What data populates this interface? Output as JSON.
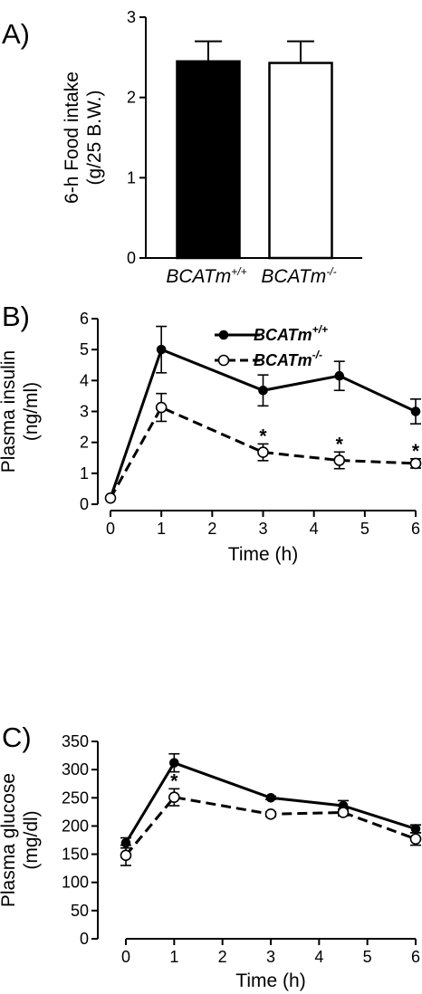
{
  "chart_data": [
    {
      "panel_label": "A)",
      "type": "bar",
      "categories": [
        {
          "base": "BCATm",
          "sup": "+/+"
        },
        {
          "base": "BCATm",
          "sup": "-/-"
        }
      ],
      "values": [
        2.45,
        2.43
      ],
      "errors": [
        0.25,
        0.27
      ],
      "bar_fill": [
        "#000000",
        "#ffffff"
      ],
      "ylabel_line1": "6-h Food intake",
      "ylabel_line2": "(g/25 B.W.)",
      "ylim": [
        0,
        3
      ],
      "yticks": [
        0,
        1,
        2,
        3
      ]
    },
    {
      "panel_label": "B)",
      "type": "line",
      "x": [
        0,
        1,
        3,
        4.5,
        6
      ],
      "series": [
        {
          "name": "BCATm",
          "name_sup": "+/+",
          "marker": "filled",
          "dash": false,
          "values": [
            0.2,
            5.0,
            3.68,
            4.15,
            3.0
          ],
          "errors": [
            0,
            0.75,
            0.5,
            0.47,
            0.4
          ]
        },
        {
          "name": "BCATm",
          "name_sup": "-/-",
          "marker": "open",
          "dash": true,
          "values": [
            0.2,
            3.13,
            1.68,
            1.42,
            1.32
          ],
          "errors": [
            0,
            0.45,
            0.27,
            0.27,
            0.15
          ]
        }
      ],
      "significance": [
        {
          "x": 3,
          "label": "*"
        },
        {
          "x": 4.5,
          "label": "*"
        },
        {
          "x": 6,
          "label": "*"
        }
      ],
      "xlabel": "Time (h)",
      "ylabel_line1": "Plasma insulin",
      "ylabel_line2": "(ng/ml)",
      "xlim": [
        0,
        6
      ],
      "ylim": [
        0,
        6
      ],
      "xticks": [
        0,
        1,
        2,
        3,
        4,
        5,
        6
      ],
      "yticks": [
        0,
        1,
        2,
        3,
        4,
        5,
        6
      ],
      "legend": "top-right"
    },
    {
      "panel_label": "C)",
      "type": "line",
      "x": [
        0,
        1,
        3,
        4.5,
        6
      ],
      "series": [
        {
          "marker": "filled",
          "dash": false,
          "values": [
            170,
            312,
            250,
            236,
            195
          ],
          "errors": [
            9,
            16,
            3,
            9,
            7
          ]
        },
        {
          "marker": "open",
          "dash": true,
          "values": [
            148,
            251,
            221,
            224,
            177
          ],
          "errors": [
            18,
            15,
            4,
            6,
            11
          ]
        }
      ],
      "significance": [
        {
          "x": 1,
          "label": "*"
        }
      ],
      "xlabel": "Time (h)",
      "ylabel_line1": "Plasma glucose",
      "ylabel_line2": "(mg/dl)",
      "xlim": [
        0,
        6
      ],
      "ylim": [
        0,
        350
      ],
      "xticks": [
        0,
        1,
        2,
        3,
        4,
        5,
        6
      ],
      "yticks": [
        0,
        50,
        100,
        150,
        200,
        250,
        300,
        350
      ]
    }
  ]
}
